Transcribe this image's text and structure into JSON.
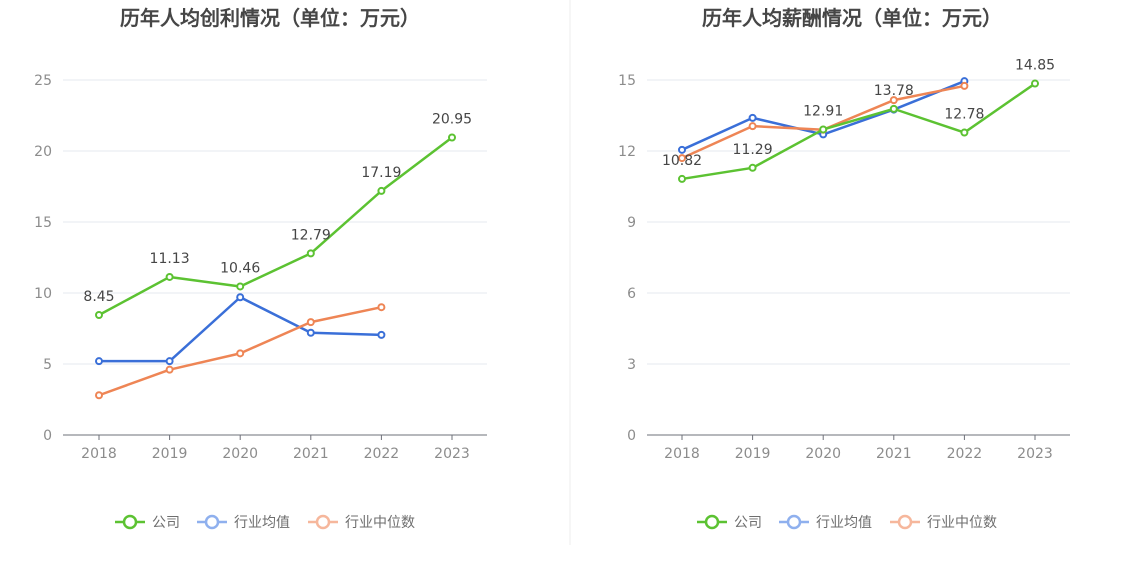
{
  "chart_data": [
    {
      "type": "line",
      "title": "历年人均创利情况（单位：万元）",
      "categories": [
        "2018",
        "2019",
        "2020",
        "2021",
        "2022",
        "2023"
      ],
      "ylim": [
        0,
        25
      ],
      "yticks": [
        0,
        5,
        10,
        15,
        20,
        25
      ],
      "grid": true,
      "legend_position": "bottom-center",
      "series": [
        {
          "name": "公司",
          "color": "#5cc232",
          "values": [
            8.45,
            11.13,
            10.46,
            12.79,
            17.19,
            20.95
          ],
          "labels": [
            "8.45",
            "11.13",
            "10.46",
            "12.79",
            "17.19",
            "20.95"
          ]
        },
        {
          "name": "行业均值",
          "color": "#3a6fd8",
          "legend_color": "#8fb0ee",
          "values": [
            5.2,
            5.2,
            9.7,
            7.2,
            7.05,
            null
          ]
        },
        {
          "name": "行业中位数",
          "color": "#ee8555",
          "legend_color": "#f6b79c",
          "values": [
            2.8,
            4.6,
            5.75,
            7.95,
            9.0,
            null
          ]
        }
      ]
    },
    {
      "type": "line",
      "title": "历年人均薪酬情况（单位：万元）",
      "categories": [
        "2018",
        "2019",
        "2020",
        "2021",
        "2022",
        "2023"
      ],
      "ylim": [
        0,
        15
      ],
      "yticks": [
        0,
        3,
        6,
        9,
        12,
        15
      ],
      "grid": true,
      "legend_position": "bottom-center",
      "series": [
        {
          "name": "公司",
          "color": "#5cc232",
          "values": [
            10.82,
            11.29,
            12.91,
            13.78,
            12.78,
            14.85
          ],
          "labels": [
            "10.82",
            "11.29",
            "12.91",
            "13.78",
            "12.78",
            "14.85"
          ]
        },
        {
          "name": "行业均值",
          "color": "#3a6fd8",
          "legend_color": "#8fb0ee",
          "values": [
            12.05,
            13.4,
            12.7,
            13.75,
            14.95,
            null
          ]
        },
        {
          "name": "行业中位数",
          "color": "#ee8555",
          "legend_color": "#f6b79c",
          "values": [
            11.7,
            13.05,
            12.9,
            14.15,
            14.75,
            null
          ]
        }
      ]
    }
  ]
}
